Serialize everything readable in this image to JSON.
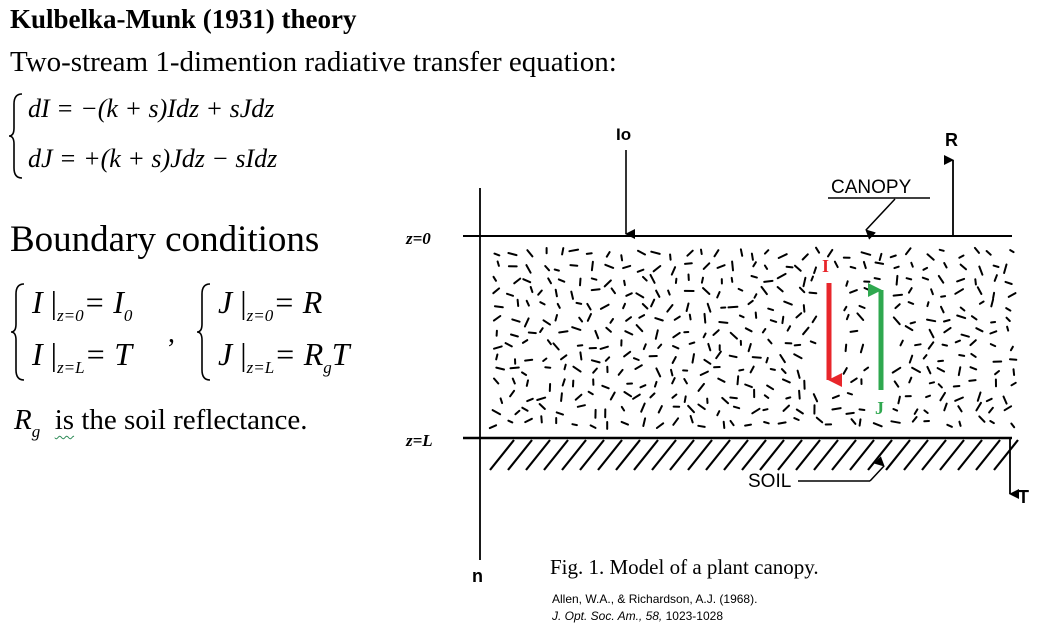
{
  "title": "Kulbelka-Munk (1931) theory",
  "subtitle": "Two-stream 1-dimention radiative transfer equation:",
  "equations": {
    "eq1": {
      "lhs": "dI",
      "rhs": "= −(k + s)Idz + sJdz"
    },
    "eq2": {
      "lhs": "dJ",
      "rhs": "= +(k + s)Jdz − sIdz"
    }
  },
  "boundary": {
    "heading": "Boundary conditions",
    "left_top": {
      "var": "I",
      "sub": "z=0",
      "rhs": "= I",
      "rhs_sub": "0"
    },
    "left_bottom": {
      "var": "I",
      "sub": "z=L",
      "rhs": "= T"
    },
    "comma": ",",
    "right_top": {
      "var": "J",
      "sub": "z=0",
      "rhs": "= R"
    },
    "right_bottom": {
      "var": "J",
      "sub": "z=L",
      "rhs": "= R",
      "rhs_sub": "g",
      "rhs_tail": "T"
    }
  },
  "soil_note": {
    "symbol": "R",
    "symbol_sub": "g",
    "word": "is",
    "rest": " the soil reflectance."
  },
  "figure": {
    "label_io": "Io",
    "label_r": "R",
    "label_canopy": "CANOPY",
    "label_z0": "z=0",
    "label_zl": "z=L",
    "label_i": "I",
    "label_j": "J",
    "label_soil": "SOIL",
    "label_t": "T",
    "label_n": "n",
    "caption": "Fig. 1. Model of a plant canopy.",
    "citation_line1": "Allen, W.A., & Richardson, A.J. (1968).",
    "citation_line2_journal": "J. Opt. Soc. Am., 58,",
    "citation_line2_pages": " 1023-1028",
    "colors": {
      "i_arrow": "#e8262b",
      "j_arrow": "#2fa84f"
    }
  }
}
